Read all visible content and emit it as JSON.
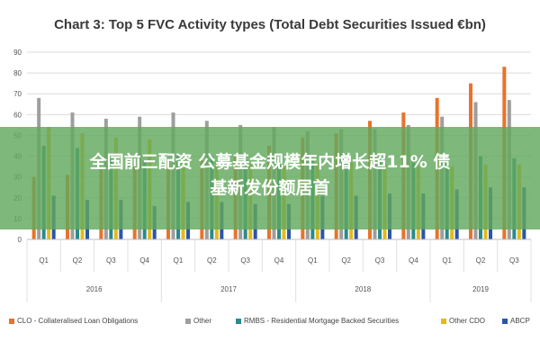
{
  "chart_data": {
    "type": "bar",
    "title": "Chart 3: Top 5 FVC Activity types (Total Debt Securities Issued €bn)",
    "xlabel": "",
    "ylabel": "",
    "ylim": [
      0,
      90
    ],
    "yticks": [
      0,
      10,
      20,
      30,
      40,
      50,
      60,
      70,
      80,
      90
    ],
    "grid": true,
    "legend_position": "bottom",
    "categories": [
      "Q1",
      "Q2",
      "Q3",
      "Q4",
      "Q1",
      "Q2",
      "Q3",
      "Q4",
      "Q1",
      "Q2",
      "Q3",
      "Q4",
      "Q1",
      "Q2",
      "Q3"
    ],
    "groups": [
      {
        "label": "2016",
        "count": 4
      },
      {
        "label": "2017",
        "count": 4
      },
      {
        "label": "2018",
        "count": 4
      },
      {
        "label": "2019",
        "count": 3
      }
    ],
    "series": [
      {
        "name": "CLO - Collateralised Loan Obligations",
        "color": "#e8732c",
        "values": [
          30,
          31,
          34,
          35,
          38,
          38,
          40,
          45,
          49,
          51,
          57,
          61,
          68,
          75,
          83
        ]
      },
      {
        "name": "Other",
        "color": "#9e9e9e",
        "values": [
          68,
          61,
          58,
          59,
          61,
          57,
          55,
          54,
          52,
          53,
          53,
          55,
          59,
          66,
          67
        ]
      },
      {
        "name": "RMBS - Residential Mortgage Backed Securities",
        "color": "#2a8a8c",
        "values": [
          45,
          44,
          40,
          38,
          41,
          40,
          38,
          36,
          39,
          38,
          37,
          37,
          38,
          40,
          39
        ]
      },
      {
        "name": "Other CDO",
        "color": "#e6b919",
        "values": [
          54,
          51,
          49,
          48,
          39,
          37,
          36,
          35,
          37,
          37,
          36,
          35,
          35,
          36,
          36
        ]
      },
      {
        "name": "ABCP",
        "color": "#2b56a8",
        "values": [
          21,
          19,
          19,
          16,
          18,
          18,
          17,
          17,
          21,
          21,
          22,
          22,
          24,
          25,
          25
        ]
      }
    ]
  },
  "overlay": {
    "line1": "全国前三配资 公募基金规模年内增长超11% 债",
    "line2": "基新发份额居首",
    "color": "#62a85d"
  }
}
